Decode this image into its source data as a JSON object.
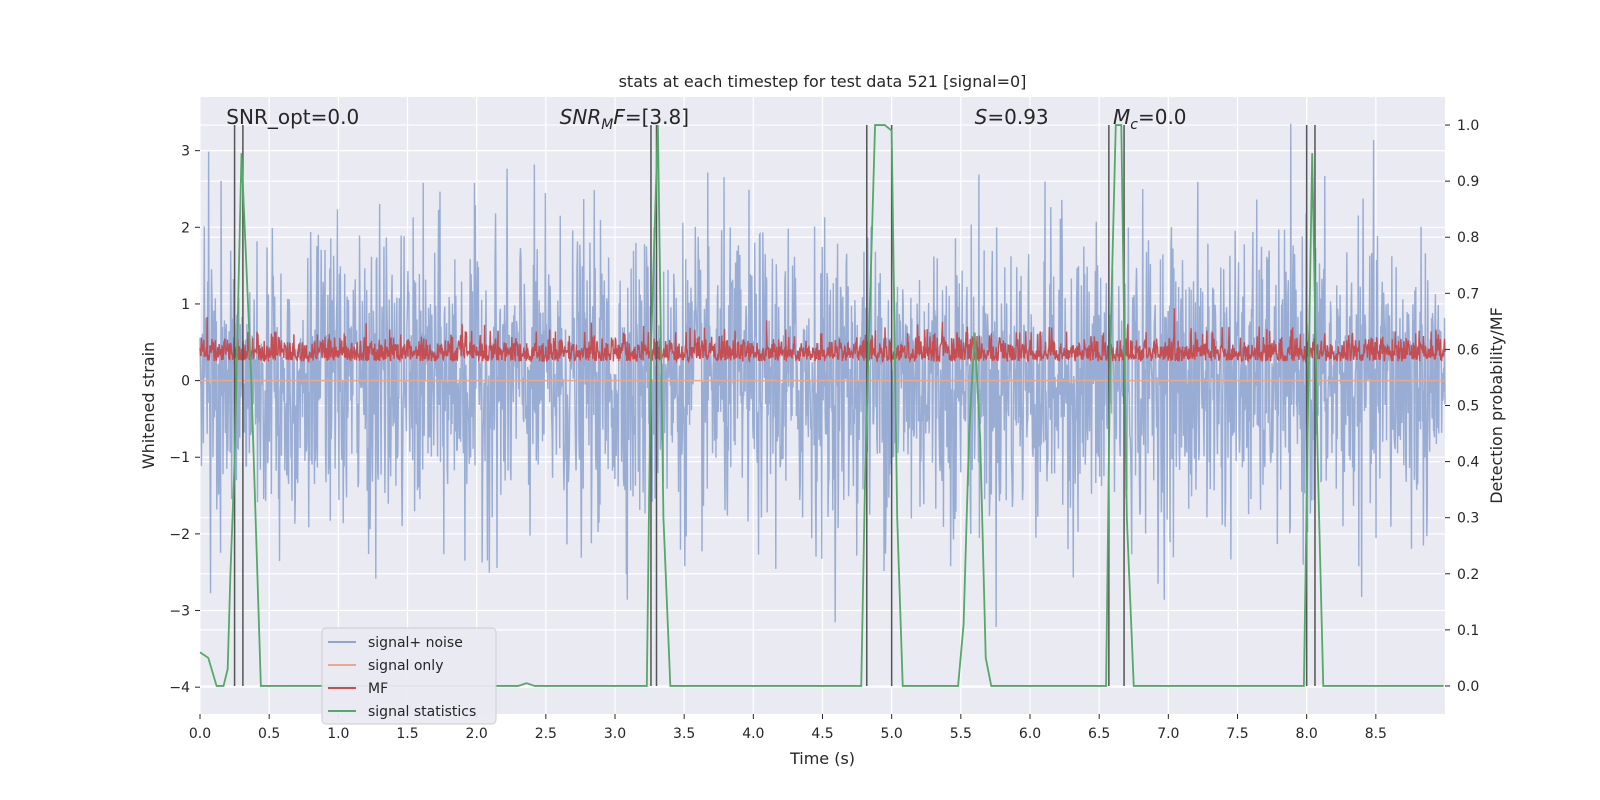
{
  "chart_data": {
    "type": "line",
    "title": "stats at each timestep for test data 521 [signal=0]",
    "xlabel": "Time (s)",
    "ylabel": "Whitened strain",
    "y2label": "Detection probability/MF",
    "xlim": [
      0.0,
      9.0
    ],
    "ylim": [
      -4.35,
      3.7
    ],
    "y2lim": [
      -0.05,
      1.05
    ],
    "xticks": [
      0.0,
      0.5,
      1.0,
      1.5,
      2.0,
      2.5,
      3.0,
      3.5,
      4.0,
      4.5,
      5.0,
      5.5,
      6.0,
      6.5,
      7.0,
      7.5,
      8.0,
      8.5
    ],
    "xtick_labels": [
      "0.0",
      "0.5",
      "1.0",
      "1.5",
      "2.0",
      "2.5",
      "3.0",
      "3.5",
      "4.0",
      "4.5",
      "5.0",
      "5.5",
      "6.0",
      "6.5",
      "7.0",
      "7.5",
      "8.0",
      "8.5"
    ],
    "yticks": [
      3,
      2,
      1,
      0,
      -1,
      -2,
      -3,
      -4
    ],
    "ytick_labels": [
      "3",
      "2",
      "1",
      "0",
      "−1",
      "−2",
      "−3",
      "−4"
    ],
    "y2ticks": [
      1.0,
      0.9,
      0.8,
      0.7,
      0.6,
      0.5,
      0.4,
      0.3,
      0.2,
      0.1,
      0.0
    ],
    "y2tick_labels": [
      "1.0",
      "0.9",
      "0.8",
      "0.7",
      "0.6",
      "0.5",
      "0.4",
      "0.3",
      "0.2",
      "0.1",
      "0.0"
    ],
    "grid": true,
    "legend_position": "lower-left",
    "annotations": [
      {
        "text": "SNR_opt=0.0",
        "x": 0.19
      },
      {
        "text": "SNR_MF=[3.8]",
        "x": 2.6
      },
      {
        "text": "S=0.93",
        "x": 5.6
      },
      {
        "text": "M_c=0.0",
        "x": 6.6
      }
    ],
    "vertical_markers": [
      0.25,
      0.31,
      3.26,
      3.3,
      4.82,
      5.0,
      6.57,
      6.68,
      8.0,
      8.06
    ],
    "series": [
      {
        "name": "signal+ noise",
        "color": "#8fa5d0",
        "axis": "left",
        "description": "noise band",
        "range_mean": 0.0,
        "range_std": 1.0
      },
      {
        "name": "signal only",
        "color": "#e8a98c",
        "axis": "left",
        "values_constant": 0.0
      },
      {
        "name": "MF",
        "color": "#c44e52",
        "axis": "left",
        "range_mean": 0.3,
        "range_std": 0.18
      },
      {
        "name": "signal statistics",
        "color": "#55a868",
        "axis": "right",
        "x": [
          0.0,
          0.06,
          0.12,
          0.17,
          0.2,
          0.22,
          0.25,
          0.3,
          0.37,
          0.44,
          2.3,
          2.36,
          2.42,
          3.23,
          3.26,
          3.31,
          3.35,
          3.4,
          4.78,
          4.81,
          4.88,
          4.95,
          5.0,
          5.04,
          5.08,
          5.48,
          5.52,
          5.56,
          5.6,
          5.64,
          5.68,
          5.72,
          6.55,
          6.58,
          6.62,
          6.66,
          6.7,
          6.75,
          7.98,
          8.01,
          8.04,
          8.08,
          8.12,
          8.99
        ],
        "y": [
          0.06,
          0.05,
          0.0,
          0.0,
          0.03,
          0.2,
          0.4,
          0.95,
          0.55,
          0.0,
          0.0,
          0.005,
          0.0,
          0.0,
          0.6,
          1.0,
          0.3,
          0.0,
          0.0,
          0.4,
          1.0,
          1.0,
          0.99,
          0.3,
          0.0,
          0.0,
          0.11,
          0.45,
          0.63,
          0.44,
          0.05,
          0.0,
          0.0,
          0.6,
          1.0,
          1.0,
          0.3,
          0.0,
          0.0,
          0.5,
          0.95,
          0.4,
          0.0,
          0.0
        ]
      }
    ]
  }
}
